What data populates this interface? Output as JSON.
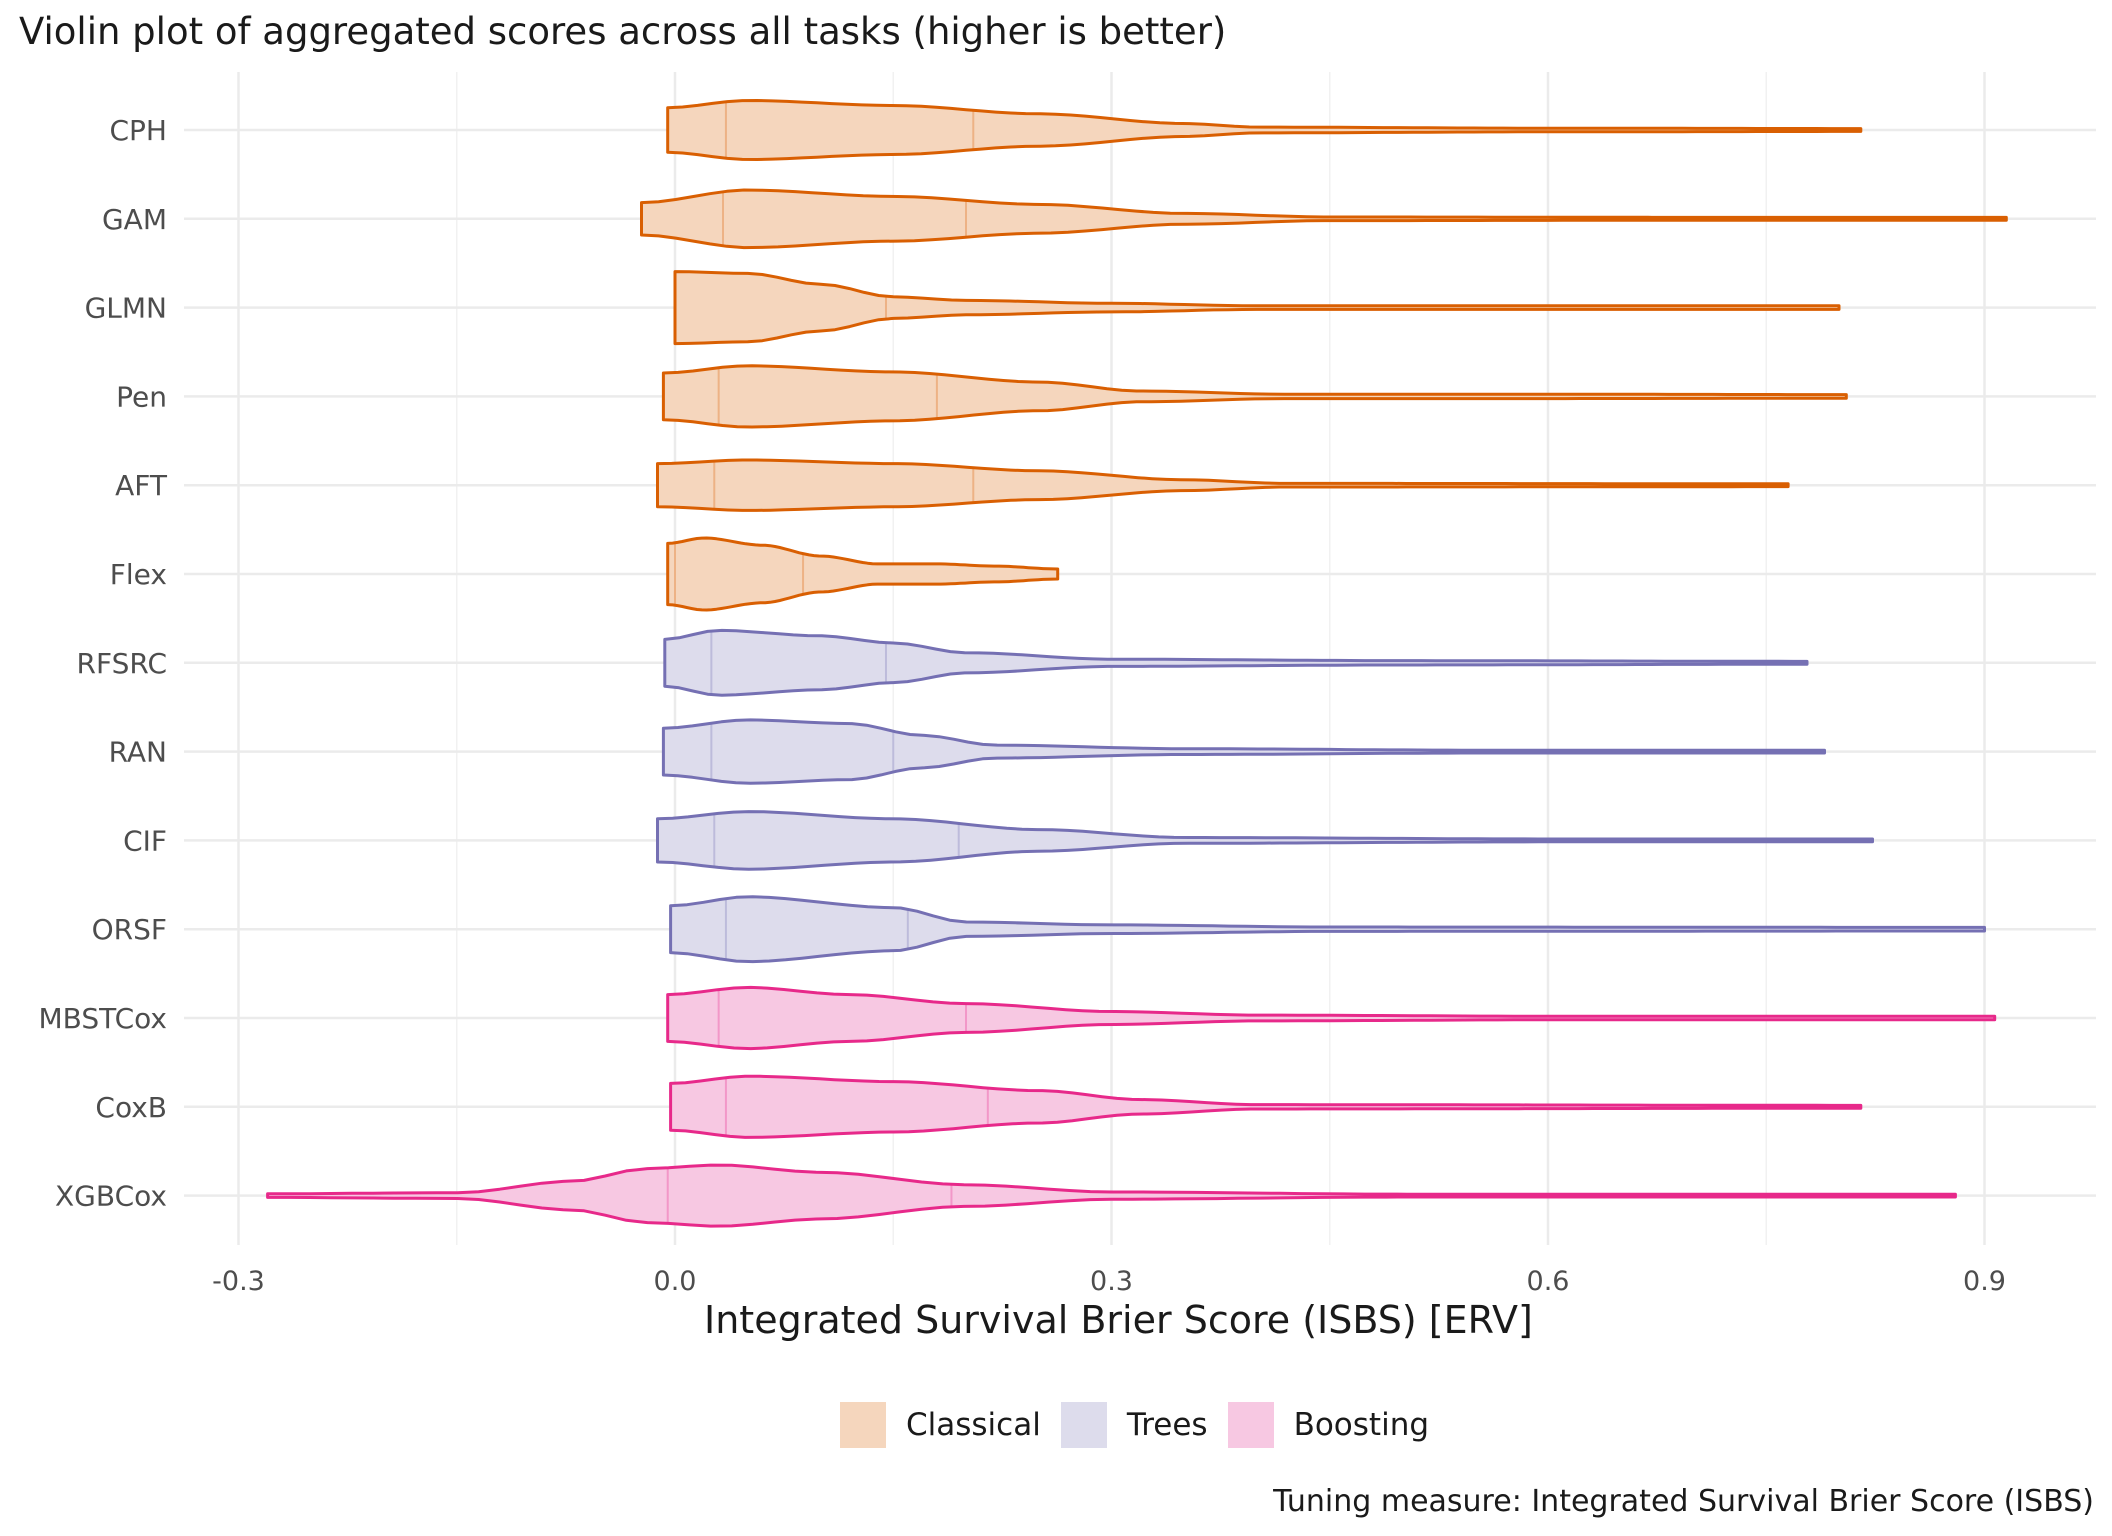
{
  "chart_data": {
    "type": "violin",
    "title": "Violin plot of aggregated scores across all tasks (higher is better)",
    "xlabel": "Integrated Survival Brier Score (ISBS) [ERV]",
    "ylabel": "",
    "caption": "Tuning measure: Integrated Survival Brier Score (ISBS)",
    "xlim": [
      -0.32,
      0.97
    ],
    "x_ticks": [
      -0.3,
      0.0,
      0.3,
      0.6,
      0.9
    ],
    "x_tick_labels": [
      "-0.3",
      "0.0",
      "0.3",
      "0.6",
      "0.9"
    ],
    "grid": true,
    "legend_position": "bottom",
    "groups": [
      {
        "name": "Classical",
        "fill": "#F5D6BD",
        "line": "#D95F02"
      },
      {
        "name": "Trees",
        "fill": "#DDDCEC",
        "line": "#7570B3"
      },
      {
        "name": "Boosting",
        "fill": "#F7C8E2",
        "line": "#E7298A"
      }
    ],
    "series": [
      {
        "name": "CPH",
        "group": "Classical",
        "min": -0.005,
        "max": 0.815,
        "median": 0.035,
        "q3": 0.205,
        "profile": [
          [
            -0.005,
            0.62
          ],
          [
            0.05,
            0.82
          ],
          [
            0.15,
            0.68
          ],
          [
            0.25,
            0.45
          ],
          [
            0.35,
            0.18
          ],
          [
            0.4,
            0.08
          ],
          [
            0.6,
            0.05
          ],
          [
            0.815,
            0.04
          ]
        ]
      },
      {
        "name": "GAM",
        "group": "Classical",
        "min": -0.023,
        "max": 0.915,
        "median": 0.033,
        "q3": 0.2,
        "profile": [
          [
            -0.023,
            0.45
          ],
          [
            0.05,
            0.8
          ],
          [
            0.15,
            0.62
          ],
          [
            0.25,
            0.4
          ],
          [
            0.35,
            0.15
          ],
          [
            0.45,
            0.05
          ],
          [
            0.7,
            0.04
          ],
          [
            0.915,
            0.04
          ]
        ]
      },
      {
        "name": "GLMN",
        "group": "Classical",
        "min": 0.0,
        "max": 0.8,
        "median": 0.0,
        "q3": 0.145,
        "profile": [
          [
            0.0,
            1.0
          ],
          [
            0.05,
            0.95
          ],
          [
            0.1,
            0.65
          ],
          [
            0.15,
            0.3
          ],
          [
            0.2,
            0.2
          ],
          [
            0.3,
            0.12
          ],
          [
            0.4,
            0.05
          ],
          [
            0.8,
            0.05
          ]
        ]
      },
      {
        "name": "Pen",
        "group": "Classical",
        "min": -0.008,
        "max": 0.805,
        "median": 0.03,
        "q3": 0.18,
        "profile": [
          [
            -0.008,
            0.65
          ],
          [
            0.05,
            0.85
          ],
          [
            0.15,
            0.68
          ],
          [
            0.25,
            0.4
          ],
          [
            0.32,
            0.15
          ],
          [
            0.42,
            0.06
          ],
          [
            0.6,
            0.06
          ],
          [
            0.805,
            0.05
          ]
        ]
      },
      {
        "name": "AFT",
        "group": "Classical",
        "min": -0.012,
        "max": 0.765,
        "median": 0.027,
        "q3": 0.205,
        "profile": [
          [
            -0.012,
            0.6
          ],
          [
            0.05,
            0.7
          ],
          [
            0.15,
            0.6
          ],
          [
            0.25,
            0.4
          ],
          [
            0.35,
            0.15
          ],
          [
            0.42,
            0.05
          ],
          [
            0.765,
            0.04
          ]
        ]
      },
      {
        "name": "Flex",
        "group": "Classical",
        "min": -0.005,
        "max": 0.263,
        "median": 0.0,
        "q3": 0.088,
        "profile": [
          [
            -0.005,
            0.85
          ],
          [
            0.02,
            1.0
          ],
          [
            0.06,
            0.8
          ],
          [
            0.1,
            0.5
          ],
          [
            0.14,
            0.28
          ],
          [
            0.18,
            0.28
          ],
          [
            0.22,
            0.22
          ],
          [
            0.263,
            0.14
          ]
        ]
      },
      {
        "name": "RFSRC",
        "group": "Trees",
        "min": -0.007,
        "max": 0.778,
        "median": 0.025,
        "q3": 0.145,
        "profile": [
          [
            -0.007,
            0.65
          ],
          [
            0.03,
            0.9
          ],
          [
            0.1,
            0.75
          ],
          [
            0.15,
            0.55
          ],
          [
            0.2,
            0.28
          ],
          [
            0.3,
            0.1
          ],
          [
            0.5,
            0.06
          ],
          [
            0.778,
            0.04
          ]
        ]
      },
      {
        "name": "RAN",
        "group": "Trees",
        "min": -0.008,
        "max": 0.79,
        "median": 0.025,
        "q3": 0.15,
        "profile": [
          [
            -0.008,
            0.65
          ],
          [
            0.05,
            0.88
          ],
          [
            0.12,
            0.78
          ],
          [
            0.17,
            0.45
          ],
          [
            0.22,
            0.18
          ],
          [
            0.35,
            0.08
          ],
          [
            0.55,
            0.04
          ],
          [
            0.79,
            0.04
          ]
        ]
      },
      {
        "name": "CIF",
        "group": "Trees",
        "min": -0.012,
        "max": 0.823,
        "median": 0.027,
        "q3": 0.195,
        "profile": [
          [
            -0.012,
            0.6
          ],
          [
            0.05,
            0.8
          ],
          [
            0.15,
            0.6
          ],
          [
            0.25,
            0.3
          ],
          [
            0.35,
            0.08
          ],
          [
            0.6,
            0.04
          ],
          [
            0.823,
            0.04
          ]
        ]
      },
      {
        "name": "ORSF",
        "group": "Trees",
        "min": -0.003,
        "max": 0.9,
        "median": 0.035,
        "q3": 0.16,
        "profile": [
          [
            -0.003,
            0.65
          ],
          [
            0.05,
            0.9
          ],
          [
            0.15,
            0.6
          ],
          [
            0.2,
            0.2
          ],
          [
            0.3,
            0.12
          ],
          [
            0.45,
            0.06
          ],
          [
            0.9,
            0.05
          ]
        ]
      },
      {
        "name": "MBSTCox",
        "group": "Boosting",
        "min": -0.005,
        "max": 0.907,
        "median": 0.03,
        "q3": 0.2,
        "profile": [
          [
            -0.005,
            0.65
          ],
          [
            0.05,
            0.85
          ],
          [
            0.12,
            0.65
          ],
          [
            0.2,
            0.4
          ],
          [
            0.3,
            0.18
          ],
          [
            0.4,
            0.08
          ],
          [
            0.6,
            0.05
          ],
          [
            0.907,
            0.05
          ]
        ]
      },
      {
        "name": "CoxB",
        "group": "Boosting",
        "min": -0.003,
        "max": 0.815,
        "median": 0.035,
        "q3": 0.215,
        "profile": [
          [
            -0.003,
            0.65
          ],
          [
            0.05,
            0.85
          ],
          [
            0.15,
            0.7
          ],
          [
            0.25,
            0.45
          ],
          [
            0.32,
            0.2
          ],
          [
            0.4,
            0.06
          ],
          [
            0.815,
            0.04
          ]
        ]
      },
      {
        "name": "XGBCox",
        "group": "Boosting",
        "min": -0.28,
        "max": 0.88,
        "median": -0.005,
        "q3": 0.19,
        "profile": [
          [
            -0.28,
            0.05
          ],
          [
            -0.15,
            0.08
          ],
          [
            -0.07,
            0.4
          ],
          [
            -0.02,
            0.75
          ],
          [
            0.03,
            0.85
          ],
          [
            0.1,
            0.65
          ],
          [
            0.2,
            0.3
          ],
          [
            0.3,
            0.1
          ],
          [
            0.5,
            0.04
          ],
          [
            0.88,
            0.04
          ]
        ]
      }
    ]
  }
}
